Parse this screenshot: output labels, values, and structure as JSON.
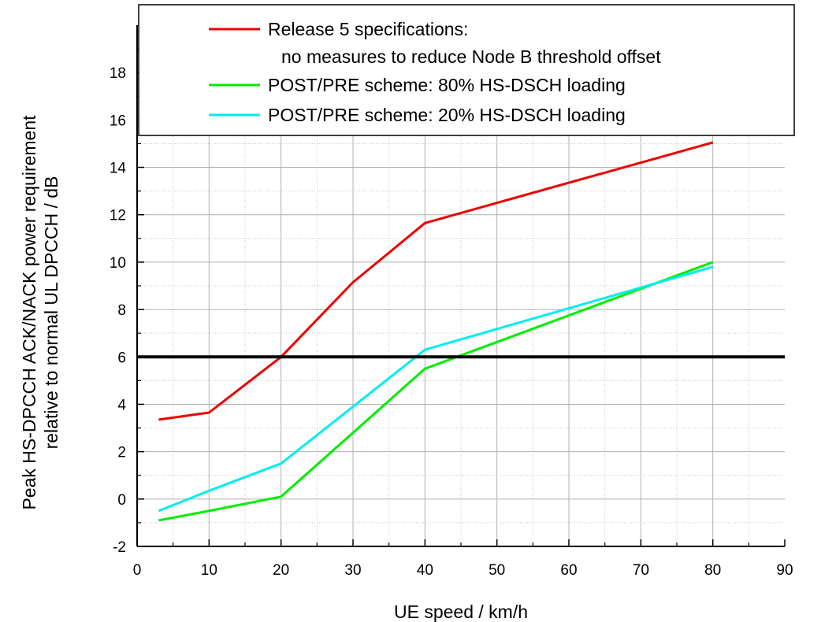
{
  "chart_data": {
    "type": "line",
    "xlabel": "UE speed  / km/h",
    "ylabel_lines": [
      "Peak HS-DPCCH ACK/NACK power requirement",
      "relative to normal UL DPCCH  / dB"
    ],
    "xlim": [
      0,
      90
    ],
    "ylim": [
      -2,
      20
    ],
    "xticks": [
      0,
      10,
      20,
      30,
      40,
      50,
      60,
      70,
      80,
      90
    ],
    "yticks": [
      -2,
      0,
      2,
      4,
      6,
      8,
      10,
      12,
      14,
      16,
      18
    ],
    "grid": true,
    "legend_position": "top-right",
    "reference_line": {
      "y": 6,
      "color": "#000000"
    },
    "series": [
      {
        "name": "Release 5 specifications:",
        "name_line2": "no measures to reduce Node B threshold offset",
        "color": "#ee0000",
        "x": [
          3,
          10,
          20,
          30,
          40,
          80
        ],
        "y": [
          3.35,
          3.65,
          6.0,
          9.15,
          11.65,
          15.05
        ]
      },
      {
        "name": "POST/PRE scheme:  80% HS-DSCH loading",
        "color": "#00ee00",
        "x": [
          3,
          10,
          20,
          30,
          40,
          80
        ],
        "y": [
          -0.9,
          -0.5,
          0.1,
          2.8,
          5.5,
          10.0
        ]
      },
      {
        "name": "POST/PRE scheme:  20% HS-DSCH loading",
        "color": "#00eeee",
        "x": [
          3,
          10,
          20,
          30,
          40,
          80
        ],
        "y": [
          -0.5,
          0.35,
          1.5,
          3.9,
          6.3,
          9.8
        ]
      }
    ]
  }
}
